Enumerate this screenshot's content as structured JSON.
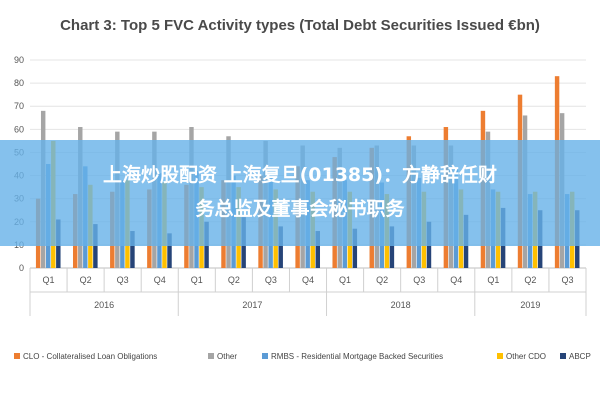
{
  "chart_data": {
    "type": "bar",
    "title": "Chart 3: Top 5 FVC Activity types (Total Debt Securities Issued €bn)",
    "categories": [
      "Q1",
      "Q2",
      "Q3",
      "Q4",
      "Q1",
      "Q2",
      "Q3",
      "Q4",
      "Q1",
      "Q2",
      "Q3",
      "Q4",
      "Q1",
      "Q2",
      "Q3"
    ],
    "years": [
      {
        "label": "2016",
        "quarters": 4
      },
      {
        "label": "2017",
        "quarters": 4
      },
      {
        "label": "2018",
        "quarters": 4
      },
      {
        "label": "2019",
        "quarters": 3
      }
    ],
    "ylim": [
      0,
      90
    ],
    "yticks": [
      0,
      10,
      20,
      30,
      40,
      50,
      60,
      70,
      80,
      90
    ],
    "grid": true,
    "legend_position": "bottom",
    "series": [
      {
        "name": "CLO - Collateralised Loan Obligations",
        "color": "#ed7d31",
        "values": [
          30,
          32,
          33,
          34,
          36,
          38,
          40,
          44,
          48,
          52,
          57,
          61,
          68,
          75,
          83
        ]
      },
      {
        "name": "Other",
        "color": "#a5a5a5",
        "values": [
          68,
          61,
          59,
          59,
          61,
          57,
          55,
          53,
          52,
          53,
          53,
          53,
          59,
          66,
          67
        ]
      },
      {
        "name": "RMBS - Residential Mortgage Backed Securities",
        "color": "#5b9bd5",
        "values": [
          45,
          44,
          38,
          41,
          42,
          40,
          39,
          38,
          38,
          37,
          39,
          43,
          34,
          32,
          32
        ]
      },
      {
        "name": "Other CDO",
        "color": "#ffc000",
        "values": [
          55,
          36,
          38,
          37,
          35,
          35,
          34,
          33,
          33,
          32,
          33,
          34,
          33,
          33,
          33
        ]
      },
      {
        "name": "ABCP",
        "color": "#264478",
        "values": [
          21,
          19,
          16,
          15,
          20,
          22,
          18,
          16,
          17,
          18,
          20,
          23,
          26,
          25,
          25
        ]
      }
    ]
  },
  "banner": {
    "line1": "上海炒股配资 上海复旦(01385)：方静辞任财",
    "line2": "务总监及董事会秘书职务"
  }
}
